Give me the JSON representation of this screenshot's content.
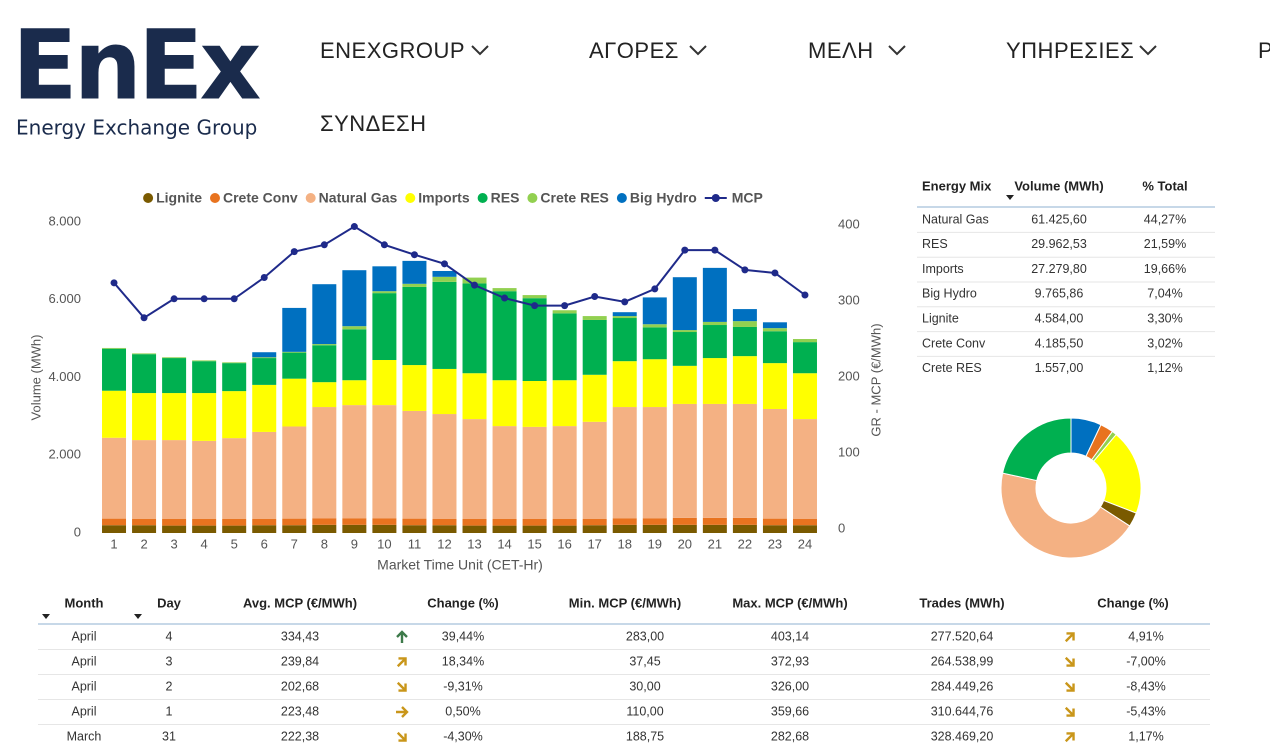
{
  "header": {
    "logo": "EnEx",
    "logo_subtitle": "Energy Exchange Group",
    "nav": [
      "ENEXGROUP",
      "ΑΓΟΡΕΣ",
      "ΜΕΛΗ",
      "ΥΠΗΡΕΣΙΕΣ",
      "Ρ",
      "ΣΥΝΔΕΣΗ"
    ]
  },
  "chart_data": [
    {
      "type": "bar",
      "stacked": true,
      "x_label": "Market Time Unit (CET-Hr)",
      "y_label": "Volume (MWh)",
      "y2_label": "GR - MCP (€/MWh)",
      "categories": [
        1,
        2,
        3,
        4,
        5,
        6,
        7,
        8,
        9,
        10,
        11,
        12,
        13,
        14,
        15,
        16,
        17,
        18,
        19,
        20,
        21,
        22,
        23,
        24
      ],
      "ylim": [
        0,
        8000
      ],
      "yticks": [
        0,
        {
          "value": 2000,
          "label": "2.000"
        },
        {
          "value": 4000,
          "label": "4.000"
        },
        {
          "value": 6000,
          "label": "6.000"
        },
        {
          "value": 8000,
          "label": "8.000"
        }
      ],
      "y2lim": [
        0,
        409
      ],
      "y2ticks": [
        0,
        100,
        200,
        300,
        400
      ],
      "legend": "top",
      "series": [
        {
          "name": "Lignite",
          "color": "#7a5a00",
          "values": [
            200,
            200,
            190,
            190,
            190,
            200,
            200,
            210,
            210,
            210,
            200,
            200,
            190,
            190,
            190,
            190,
            200,
            210,
            210,
            210,
            210,
            210,
            200,
            200
          ]
        },
        {
          "name": "Crete Conv",
          "color": "#e8731f",
          "values": [
            170,
            160,
            170,
            170,
            170,
            160,
            170,
            170,
            170,
            170,
            170,
            160,
            170,
            170,
            170,
            170,
            160,
            170,
            170,
            180,
            180,
            180,
            170,
            160
          ]
        },
        {
          "name": "Natural Gas",
          "color": "#f4b183",
          "values": [
            2080,
            2030,
            2030,
            2010,
            2080,
            2240,
            2370,
            2860,
            2910,
            2910,
            2770,
            2700,
            2570,
            2390,
            2370,
            2390,
            2500,
            2860,
            2860,
            2930,
            2930,
            2930,
            2820,
            2570
          ]
        },
        {
          "name": "Imports",
          "color": "#ffff00",
          "values": [
            1210,
            1210,
            1210,
            1230,
            1210,
            1210,
            1230,
            640,
            640,
            1160,
            1180,
            1160,
            1180,
            1180,
            1180,
            1180,
            1210,
            1180,
            1230,
            980,
            1180,
            1230,
            1180,
            1180
          ]
        },
        {
          "name": "RES",
          "color": "#00b050",
          "values": [
            1080,
            1000,
            900,
            820,
            720,
            690,
            670,
            950,
            1310,
            1720,
            2010,
            2240,
            2310,
            2290,
            2130,
            1720,
            1410,
            1110,
            820,
            870,
            850,
            750,
            820,
            800
          ]
        },
        {
          "name": "Crete RES",
          "color": "#92d050",
          "values": [
            20,
            20,
            20,
            20,
            20,
            20,
            20,
            30,
            80,
            50,
            80,
            130,
            150,
            80,
            80,
            80,
            100,
            50,
            80,
            50,
            80,
            150,
            80,
            80
          ]
        },
        {
          "name": "Big Hydro",
          "color": "#0070c0",
          "values": [
            0,
            0,
            0,
            0,
            0,
            130,
            1130,
            1540,
            1440,
            640,
            590,
            150,
            0,
            0,
            0,
            0,
            0,
            100,
            690,
            1360,
            1390,
            310,
            150,
            0
          ]
        },
        {
          "name": "MCP",
          "color": "#1f2a8a",
          "type": "line",
          "axis": "y2",
          "values": [
            329,
            283,
            308,
            308,
            308,
            336,
            370,
            379,
            403,
            379,
            366,
            354,
            326,
            309,
            299,
            299,
            311,
            304,
            321,
            372,
            372,
            346,
            342,
            313
          ]
        }
      ]
    },
    {
      "type": "pie",
      "donut": true,
      "categories": [
        "Big Hydro",
        "Crete Conv",
        "Crete RES",
        "Imports",
        "Lignite",
        "Natural Gas",
        "RES"
      ],
      "values": [
        7.04,
        3.02,
        1.12,
        19.66,
        3.3,
        44.27,
        21.59
      ],
      "colors": [
        "#0070c0",
        "#e8731f",
        "#92d050",
        "#ffff00",
        "#7a5a00",
        "#f4b183",
        "#00b050"
      ]
    }
  ],
  "mix_table": {
    "columns": [
      "Energy Mix",
      "Volume (MWh)",
      "% Total"
    ],
    "rows": [
      [
        "Natural Gas",
        "61.425,60",
        "44,27%"
      ],
      [
        "RES",
        "29.962,53",
        "21,59%"
      ],
      [
        "Imports",
        "27.279,80",
        "19,66%"
      ],
      [
        "Big Hydro",
        "9.765,86",
        "7,04%"
      ],
      [
        "Lignite",
        "4.584,00",
        "3,30%"
      ],
      [
        "Crete Conv",
        "4.185,50",
        "3,02%"
      ],
      [
        "Crete RES",
        "1.557,00",
        "1,12%"
      ]
    ]
  },
  "trades_table": {
    "columns": [
      "Month",
      "Day",
      "Avg. MCP (€/MWh)",
      "Change (%)",
      "Min. MCP (€/MWh)",
      "Max. MCP (€/MWh)",
      "Trades (MWh)",
      "Change (%)"
    ],
    "rows": [
      [
        "April",
        "4",
        "334,43",
        "39,44%",
        "283,00",
        "403,14",
        "277.520,64",
        "4,91%"
      ],
      [
        "April",
        "3",
        "239,84",
        "18,34%",
        "37,45",
        "372,93",
        "264.538,99",
        "-7,00%"
      ],
      [
        "April",
        "2",
        "202,68",
        "-9,31%",
        "30,00",
        "326,00",
        "284.449,26",
        "-8,43%"
      ],
      [
        "April",
        "1",
        "223,48",
        "0,50%",
        "110,00",
        "359,66",
        "310.644,76",
        "-5,43%"
      ],
      [
        "March",
        "31",
        "222,38",
        "-4,30%",
        "188,75",
        "282,68",
        "328.469,20",
        "1,17%"
      ]
    ]
  }
}
